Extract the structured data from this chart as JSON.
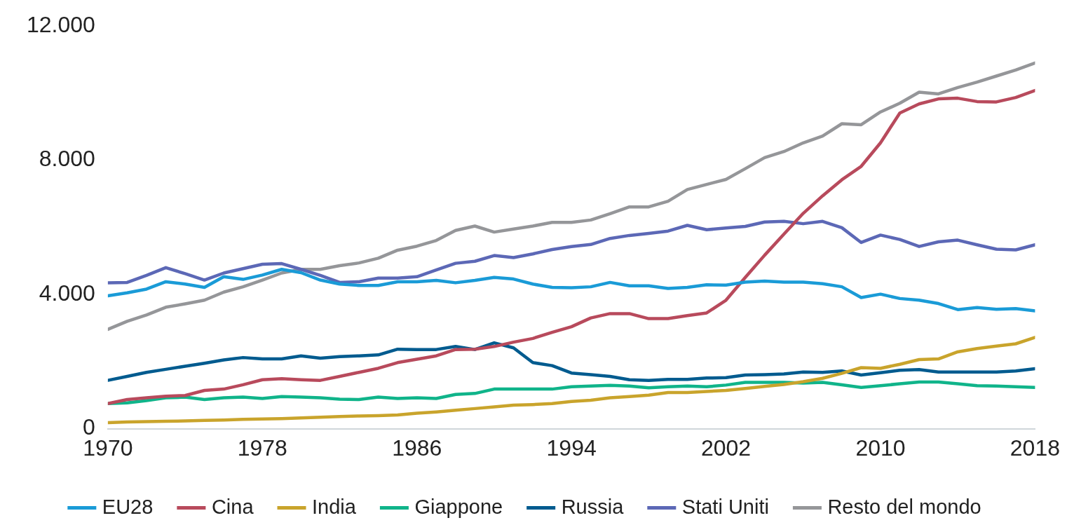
{
  "chart_data": {
    "type": "line",
    "x": [
      1970,
      1971,
      1972,
      1973,
      1974,
      1975,
      1976,
      1977,
      1978,
      1979,
      1980,
      1981,
      1982,
      1983,
      1984,
      1985,
      1986,
      1987,
      1988,
      1989,
      1990,
      1991,
      1992,
      1993,
      1994,
      1995,
      1996,
      1997,
      1998,
      1999,
      2000,
      2001,
      2002,
      2003,
      2004,
      2005,
      2006,
      2007,
      2008,
      2009,
      2010,
      2011,
      2012,
      2013,
      2014,
      2015,
      2016,
      2017,
      2018
    ],
    "xlim": [
      1970,
      2018
    ],
    "xticks": [
      1970,
      1978,
      1986,
      1994,
      2002,
      2010,
      2018
    ],
    "ylim": [
      0,
      12000
    ],
    "yticks": [
      0,
      {
        "value": 4000,
        "label": "4.000"
      },
      {
        "value": 8000,
        "label": "8.000"
      },
      {
        "value": 12000,
        "label": "12.000"
      }
    ],
    "grid": false,
    "legend": "bottom",
    "marker": "none",
    "line_style": "solid",
    "series": [
      {
        "name": "EU28",
        "color": "#1a9bd7",
        "values": [
          3960,
          4050,
          4160,
          4380,
          4310,
          4210,
          4530,
          4450,
          4580,
          4750,
          4650,
          4430,
          4310,
          4270,
          4270,
          4380,
          4380,
          4420,
          4350,
          4420,
          4510,
          4460,
          4310,
          4210,
          4200,
          4230,
          4360,
          4260,
          4260,
          4180,
          4210,
          4290,
          4280,
          4370,
          4400,
          4370,
          4370,
          4320,
          4230,
          3910,
          4010,
          3880,
          3830,
          3730,
          3550,
          3610,
          3560,
          3580,
          3510
        ]
      },
      {
        "name": "Cina",
        "color": "#b84a5c",
        "values": [
          750,
          870,
          920,
          970,
          990,
          1140,
          1180,
          1310,
          1460,
          1490,
          1460,
          1440,
          1560,
          1680,
          1800,
          1970,
          2070,
          2170,
          2360,
          2370,
          2450,
          2580,
          2690,
          2870,
          3040,
          3300,
          3430,
          3430,
          3280,
          3280,
          3370,
          3450,
          3830,
          4510,
          5170,
          5800,
          6420,
          6940,
          7420,
          7820,
          8520,
          9410,
          9680,
          9830,
          9850,
          9750,
          9740,
          9870,
          10080
        ]
      },
      {
        "name": "India",
        "color": "#c9a42c",
        "values": [
          180,
          200,
          210,
          220,
          230,
          250,
          260,
          280,
          290,
          300,
          320,
          340,
          360,
          380,
          390,
          410,
          460,
          500,
          550,
          600,
          650,
          700,
          720,
          750,
          810,
          850,
          920,
          960,
          1000,
          1080,
          1080,
          1110,
          1140,
          1200,
          1260,
          1320,
          1400,
          1500,
          1650,
          1820,
          1800,
          1920,
          2060,
          2080,
          2290,
          2390,
          2460,
          2530,
          2720
        ]
      },
      {
        "name": "Giappone",
        "color": "#10b48a",
        "values": [
          750,
          770,
          840,
          920,
          940,
          870,
          920,
          940,
          900,
          960,
          940,
          920,
          880,
          870,
          940,
          900,
          920,
          900,
          1020,
          1050,
          1180,
          1180,
          1180,
          1180,
          1250,
          1270,
          1290,
          1270,
          1220,
          1250,
          1270,
          1250,
          1300,
          1380,
          1380,
          1380,
          1360,
          1380,
          1310,
          1230,
          1280,
          1340,
          1390,
          1390,
          1340,
          1280,
          1270,
          1250,
          1230
        ]
      },
      {
        "name": "Russia",
        "color": "#005b8f",
        "values": [
          1440,
          1560,
          1680,
          1770,
          1860,
          1950,
          2050,
          2120,
          2080,
          2080,
          2170,
          2100,
          2150,
          2170,
          2200,
          2370,
          2360,
          2360,
          2450,
          2360,
          2560,
          2410,
          1970,
          1880,
          1660,
          1610,
          1560,
          1460,
          1440,
          1470,
          1470,
          1510,
          1520,
          1600,
          1610,
          1630,
          1690,
          1680,
          1720,
          1600,
          1670,
          1740,
          1760,
          1690,
          1690,
          1690,
          1690,
          1720,
          1790
        ]
      },
      {
        "name": "Stati Uniti",
        "color": "#5c68b6",
        "values": [
          4350,
          4360,
          4570,
          4800,
          4620,
          4430,
          4640,
          4770,
          4900,
          4920,
          4750,
          4570,
          4360,
          4380,
          4490,
          4490,
          4530,
          4730,
          4930,
          4990,
          5160,
          5100,
          5210,
          5340,
          5430,
          5490,
          5670,
          5760,
          5820,
          5890,
          6060,
          5930,
          5980,
          6030,
          6160,
          6180,
          6110,
          6180,
          5990,
          5550,
          5770,
          5640,
          5430,
          5570,
          5620,
          5480,
          5350,
          5330,
          5480
        ]
      },
      {
        "name": "Resto del mondo",
        "color": "#959699",
        "values": [
          2960,
          3200,
          3390,
          3620,
          3720,
          3830,
          4070,
          4230,
          4430,
          4640,
          4750,
          4750,
          4860,
          4940,
          5080,
          5320,
          5440,
          5610,
          5910,
          6040,
          5860,
          5950,
          6040,
          6150,
          6150,
          6220,
          6410,
          6610,
          6610,
          6780,
          7130,
          7280,
          7430,
          7750,
          8080,
          8260,
          8520,
          8720,
          9090,
          9060,
          9440,
          9700,
          10030,
          9980,
          10170,
          10330,
          10510,
          10690,
          10900
        ]
      }
    ]
  }
}
